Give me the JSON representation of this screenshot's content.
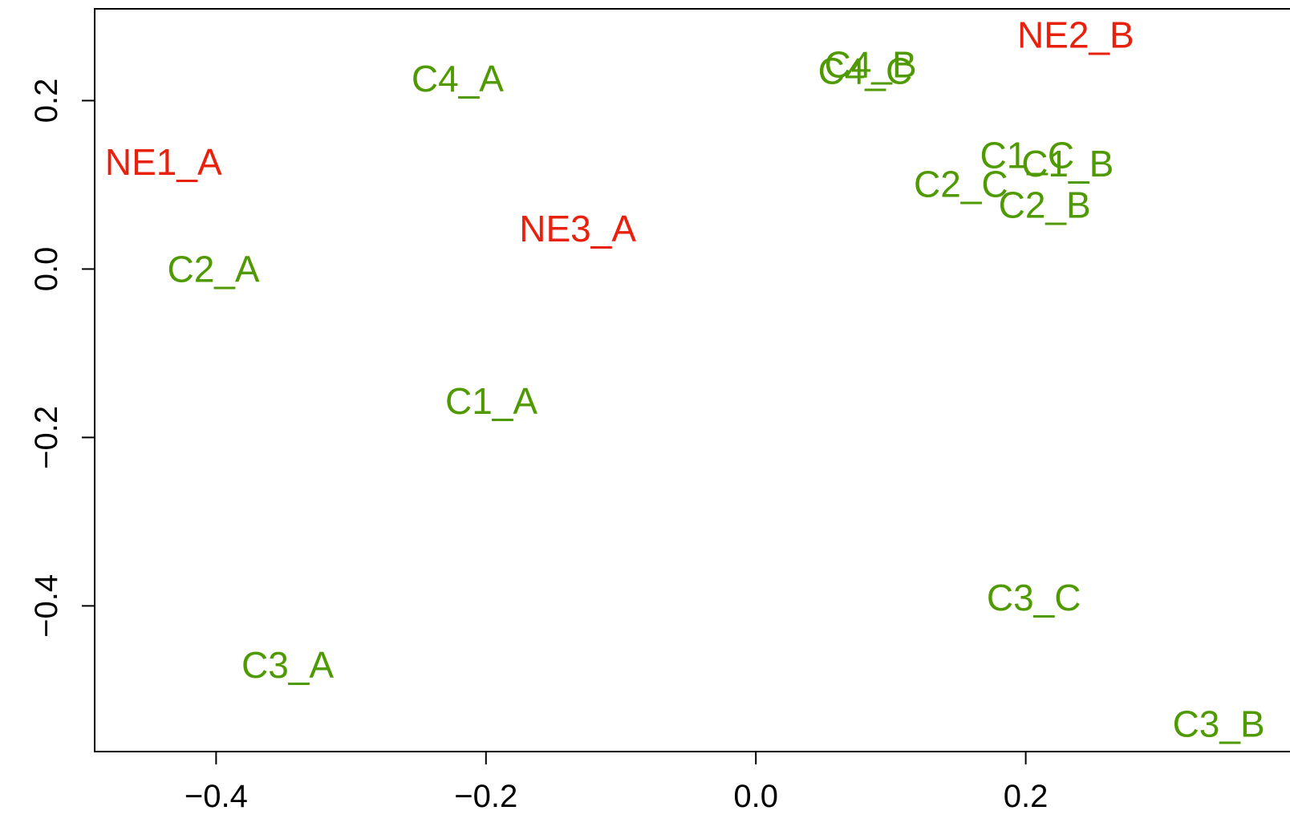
{
  "chart_data": {
    "type": "text-scatter",
    "xlim": [
      -0.49,
      0.4
    ],
    "ylim": [
      -0.573,
      0.309
    ],
    "xticks": [
      {
        "value": -0.4,
        "label": "−0.4"
      },
      {
        "value": -0.2,
        "label": "−0.2"
      },
      {
        "value": 0,
        "label": "0.0"
      },
      {
        "value": 0.2,
        "label": "0.2"
      }
    ],
    "yticks": [
      {
        "value": -0.4,
        "label": "−0.4"
      },
      {
        "value": -0.2,
        "label": "−0.2"
      },
      {
        "value": 0,
        "label": "0.0"
      },
      {
        "value": 0.2,
        "label": "0.2"
      }
    ],
    "points": [
      {
        "label": "NE1_A",
        "x": -0.439,
        "y": 0.127,
        "color": "#e8200e"
      },
      {
        "label": "C4_A",
        "x": -0.221,
        "y": 0.226,
        "color": "#4f9a00"
      },
      {
        "label": "C2_A",
        "x": -0.402,
        "y": 0.0,
        "color": "#4f9a00"
      },
      {
        "label": "NE3_A",
        "x": -0.132,
        "y": 0.048,
        "color": "#e8200e"
      },
      {
        "label": "C1_A",
        "x": -0.196,
        "y": -0.157,
        "color": "#4f9a00"
      },
      {
        "label": "C3_A",
        "x": -0.347,
        "y": -0.47,
        "color": "#4f9a00"
      },
      {
        "label": "C4_B",
        "x": 0.085,
        "y": 0.243,
        "color": "#4f9a00"
      },
      {
        "label": "C4_C",
        "x": 0.081,
        "y": 0.235,
        "color": "#4f9a00"
      },
      {
        "label": "NE2_B",
        "x": 0.237,
        "y": 0.278,
        "color": "#e8200e"
      },
      {
        "label": "C1_C",
        "x": 0.201,
        "y": 0.135,
        "color": "#4f9a00"
      },
      {
        "label": "C1_B",
        "x": 0.231,
        "y": 0.125,
        "color": "#4f9a00"
      },
      {
        "label": "C2_C",
        "x": 0.152,
        "y": 0.101,
        "color": "#4f9a00"
      },
      {
        "label": "C2_B",
        "x": 0.214,
        "y": 0.076,
        "color": "#4f9a00"
      },
      {
        "label": "C3_C",
        "x": 0.206,
        "y": -0.39,
        "color": "#4f9a00"
      },
      {
        "label": "C3_B",
        "x": 0.343,
        "y": -0.54,
        "color": "#4f9a00"
      }
    ]
  }
}
